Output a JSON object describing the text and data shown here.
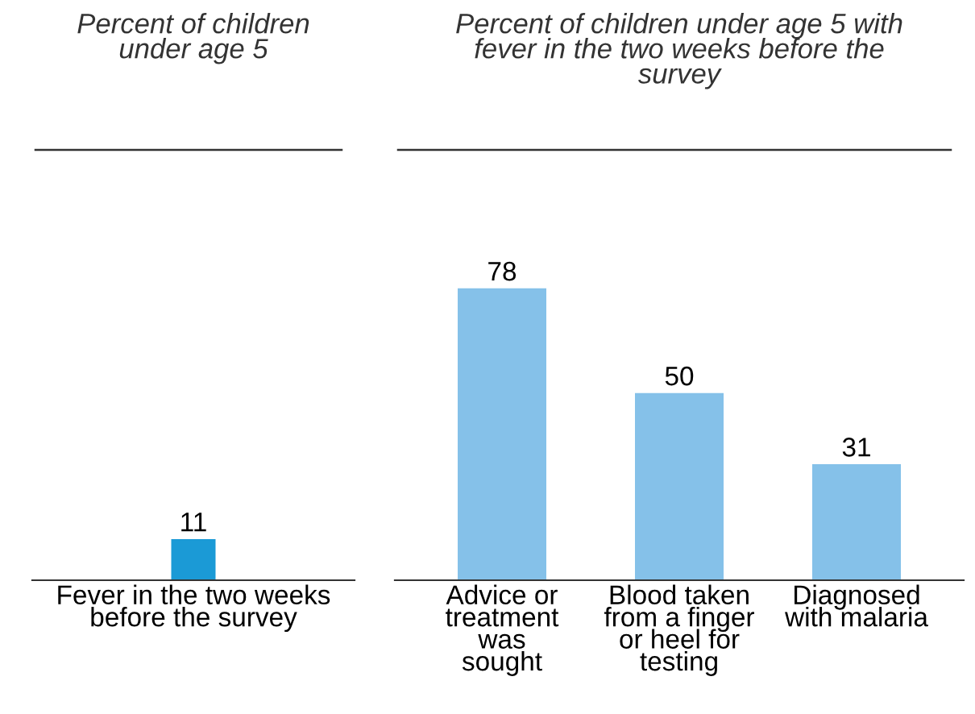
{
  "chart_data": [
    {
      "type": "bar",
      "title": "Percent of children\nunder age 5",
      "categories": [
        "Fever in the two weeks\nbefore the survey"
      ],
      "values": [
        11
      ],
      "color": "#1b9ad6",
      "data_labels": true,
      "grid": false,
      "legend": false
    },
    {
      "type": "bar",
      "title": "Percent of children under age 5 with\nfever in the two weeks before the\nsurvey",
      "categories": [
        "Advice or\ntreatment\nwas\nsought",
        "Blood taken\nfrom a finger\nor heel for\ntesting",
        "Diagnosed\nwith malaria"
      ],
      "values": [
        78,
        50,
        31
      ],
      "color": "#85c1e9",
      "data_labels": true,
      "grid": false,
      "legend": false
    }
  ]
}
